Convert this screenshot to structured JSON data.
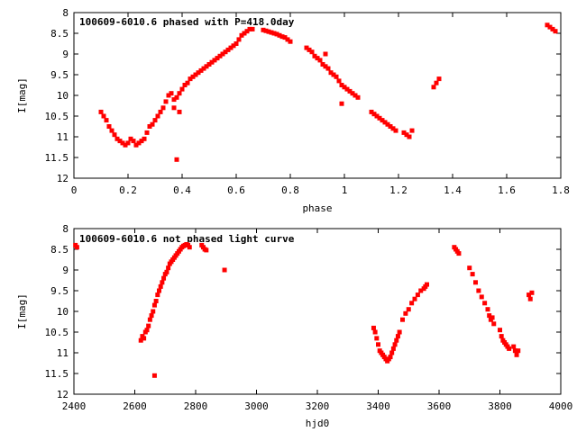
{
  "chart_data": [
    {
      "type": "scatter",
      "title": "100609-6010.6 phased with P=418.0day",
      "xlabel": "phase",
      "ylabel": "I[mag]",
      "xlim": [
        0,
        1.8
      ],
      "ylim": [
        12,
        8
      ],
      "y_inverted": true,
      "xticks": [
        "0",
        "0.2",
        "0.4",
        "0.6",
        "0.8",
        "1",
        "1.2",
        "1.4",
        "1.6",
        "1.8"
      ],
      "yticks": [
        "8",
        "8.5",
        "9",
        "9.5",
        "10",
        "10.5",
        "11",
        "11.5",
        "12"
      ],
      "grid": false,
      "marker_color": "#ff0000",
      "series": [
        {
          "x": [
            0.1,
            0.11,
            0.12,
            0.13,
            0.14,
            0.15,
            0.16,
            0.17,
            0.18,
            0.19,
            0.2,
            0.21,
            0.22,
            0.23,
            0.24,
            0.25,
            0.26,
            0.27,
            0.28,
            0.29,
            0.3,
            0.31,
            0.32,
            0.33,
            0.34,
            0.35,
            0.36,
            0.37,
            0.38,
            0.39,
            0.4,
            0.41,
            0.42,
            0.43,
            0.44,
            0.45,
            0.46,
            0.47,
            0.48,
            0.49,
            0.5,
            0.51,
            0.52,
            0.53,
            0.54,
            0.55,
            0.56,
            0.57,
            0.58,
            0.59,
            0.6,
            0.61,
            0.62,
            0.63,
            0.64,
            0.65,
            0.66,
            0.7,
            0.71,
            0.72,
            0.73,
            0.74,
            0.75,
            0.76,
            0.77,
            0.78,
            0.79,
            0.8,
            0.86,
            0.87,
            0.88,
            0.89,
            0.9,
            0.91,
            0.92,
            0.93,
            0.94,
            0.95,
            0.96,
            0.97,
            0.98,
            0.99,
            1.0,
            1.01,
            1.02,
            1.03,
            1.04,
            1.05,
            1.1,
            1.11,
            1.12,
            1.13,
            1.14,
            1.15,
            1.16,
            1.17,
            1.18,
            1.19,
            1.22,
            1.23,
            1.24,
            1.25,
            1.33,
            1.34,
            1.35,
            1.75,
            1.76,
            1.77,
            1.78,
            0.38,
            0.37,
            0.39,
            0.93,
            0.99
          ],
          "y": [
            10.4,
            10.5,
            10.6,
            10.75,
            10.85,
            10.95,
            11.05,
            11.1,
            11.15,
            11.2,
            11.15,
            11.05,
            11.1,
            11.2,
            11.15,
            11.1,
            11.05,
            10.9,
            10.75,
            10.7,
            10.6,
            10.5,
            10.4,
            10.3,
            10.15,
            10.0,
            9.95,
            10.1,
            10.05,
            9.95,
            9.85,
            9.75,
            9.7,
            9.6,
            9.55,
            9.5,
            9.45,
            9.4,
            9.35,
            9.3,
            9.25,
            9.2,
            9.15,
            9.1,
            9.05,
            9.0,
            8.95,
            8.9,
            8.85,
            8.8,
            8.75,
            8.65,
            8.55,
            8.5,
            8.45,
            8.4,
            8.4,
            8.42,
            8.44,
            8.46,
            8.48,
            8.5,
            8.52,
            8.55,
            8.58,
            8.6,
            8.65,
            8.7,
            8.85,
            8.9,
            8.95,
            9.05,
            9.1,
            9.15,
            9.25,
            9.3,
            9.35,
            9.45,
            9.5,
            9.55,
            9.65,
            9.75,
            9.8,
            9.85,
            9.9,
            9.95,
            10.0,
            10.05,
            10.4,
            10.45,
            10.5,
            10.55,
            10.6,
            10.65,
            10.7,
            10.75,
            10.8,
            10.85,
            10.9,
            10.95,
            11.0,
            10.85,
            9.8,
            9.7,
            9.6,
            8.3,
            8.35,
            8.4,
            8.45,
            11.55,
            10.3,
            10.4,
            9.0,
            10.2
          ]
        }
      ]
    },
    {
      "type": "scatter",
      "title": "100609-6010.6 not phased light curve",
      "xlabel": "hjd0",
      "ylabel": "I[mag]",
      "xlim": [
        2400,
        4000
      ],
      "ylim": [
        12,
        8
      ],
      "y_inverted": true,
      "xticks": [
        "2400",
        "2600",
        "2800",
        "3000",
        "3200",
        "3400",
        "3600",
        "3800",
        "4000"
      ],
      "yticks": [
        "8",
        "8.5",
        "9",
        "9.5",
        "10",
        "10.5",
        "11",
        "11.5",
        "12"
      ],
      "grid": false,
      "marker_color": "#ff0000",
      "series": [
        {
          "x": [
            2405,
            2410,
            2620,
            2625,
            2630,
            2635,
            2640,
            2645,
            2650,
            2655,
            2660,
            2665,
            2670,
            2675,
            2680,
            2685,
            2690,
            2695,
            2700,
            2705,
            2710,
            2715,
            2720,
            2725,
            2730,
            2735,
            2740,
            2745,
            2750,
            2755,
            2760,
            2765,
            2770,
            2775,
            2780,
            2820,
            2825,
            2830,
            2835,
            2665,
            2895,
            3385,
            3390,
            3395,
            3400,
            3405,
            3410,
            3415,
            3420,
            3425,
            3430,
            3435,
            3440,
            3445,
            3450,
            3455,
            3460,
            3465,
            3470,
            3480,
            3490,
            3500,
            3510,
            3520,
            3530,
            3540,
            3550,
            3555,
            3560,
            3650,
            3655,
            3660,
            3665,
            3700,
            3710,
            3720,
            3730,
            3740,
            3750,
            3760,
            3765,
            3770,
            3775,
            3780,
            3800,
            3805,
            3810,
            3815,
            3820,
            3825,
            3830,
            3845,
            3850,
            3855,
            3860,
            3895,
            3900,
            3905
          ],
          "y": [
            8.4,
            8.45,
            10.7,
            10.6,
            10.65,
            10.5,
            10.45,
            10.35,
            10.2,
            10.1,
            10.0,
            9.85,
            9.75,
            9.6,
            9.5,
            9.4,
            9.3,
            9.2,
            9.1,
            9.05,
            8.95,
            8.85,
            8.8,
            8.75,
            8.7,
            8.65,
            8.6,
            8.55,
            8.5,
            8.45,
            8.42,
            8.4,
            8.38,
            8.4,
            8.45,
            8.4,
            8.45,
            8.5,
            8.52,
            11.55,
            9.0,
            10.4,
            10.5,
            10.65,
            10.8,
            10.95,
            11.0,
            11.05,
            11.1,
            11.15,
            11.2,
            11.15,
            11.1,
            11.0,
            10.9,
            10.8,
            10.7,
            10.6,
            10.5,
            10.2,
            10.05,
            9.95,
            9.8,
            9.7,
            9.6,
            9.5,
            9.45,
            9.4,
            9.35,
            8.45,
            8.5,
            8.55,
            8.6,
            8.95,
            9.1,
            9.3,
            9.5,
            9.65,
            9.8,
            9.95,
            10.1,
            10.2,
            10.15,
            10.3,
            10.45,
            10.6,
            10.7,
            10.75,
            10.8,
            10.85,
            10.9,
            10.85,
            10.95,
            11.05,
            10.95,
            9.6,
            9.7,
            9.55
          ]
        }
      ]
    }
  ]
}
